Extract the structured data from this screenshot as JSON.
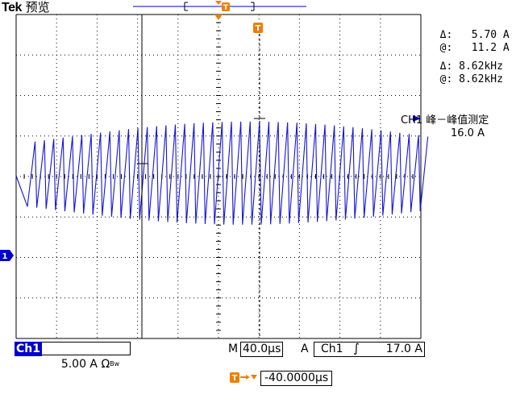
{
  "header": {
    "brand": "Tek",
    "mode": "预览"
  },
  "trigger_marker_label": "T",
  "channel_marker_label": "1",
  "cursor_readout": {
    "amp_delta_symbol": "Δ:",
    "amp_delta": "5.70 A",
    "amp_at_symbol": "@:",
    "amp_at": "11.2 A",
    "freq_delta_symbol": "Δ:",
    "freq_delta": "8.62kHz",
    "freq_at_symbol": "@:",
    "freq_at": "8.62kHz"
  },
  "measurement": {
    "title": "CH1 峰－峰值测定",
    "value": "16.0 A"
  },
  "status": {
    "channel": "Ch1",
    "channel_scale": "5.00 A Ω",
    "bw_limit": "Bw",
    "timebase_prefix": "M",
    "timebase": "40.0µs",
    "trigger_mode": "A",
    "trigger_source": "Ch1",
    "trigger_slope": "∫",
    "trigger_level": "17.0 A"
  },
  "horizontal_position": {
    "value": "-40.0000µs"
  },
  "colors": {
    "trace": "#1515d8",
    "channel": "#0000cc",
    "trigger_marker": "#f07d00",
    "grid": "#000000"
  }
}
